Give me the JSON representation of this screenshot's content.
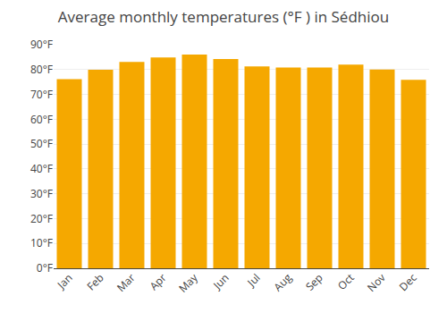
{
  "chart_data": {
    "type": "bar",
    "title": "Average monthly temperatures (°F ) in Sédhiou",
    "categories": [
      "Jan",
      "Feb",
      "Mar",
      "Apr",
      "May",
      "Jun",
      "Jul",
      "Aug",
      "Sep",
      "Oct",
      "Nov",
      "Dec"
    ],
    "values": [
      76.1,
      79.9,
      83.1,
      84.9,
      86.0,
      84.2,
      81.3,
      80.8,
      80.8,
      82.0,
      80.0,
      75.9
    ],
    "color": "#F5A800",
    "ylim": [
      0,
      90
    ],
    "yticks": [
      {
        "value": 0,
        "label": "0°F"
      },
      {
        "value": 10,
        "label": "10°F"
      },
      {
        "value": 20,
        "label": "20°F"
      },
      {
        "value": 30,
        "label": "30°F"
      },
      {
        "value": 40,
        "label": "40°F"
      },
      {
        "value": 50,
        "label": "50°F"
      },
      {
        "value": 60,
        "label": "60°F"
      },
      {
        "value": 70,
        "label": "70°F"
      },
      {
        "value": 80,
        "label": "80°F"
      },
      {
        "value": 90,
        "label": "90°F"
      }
    ],
    "grid": true
  }
}
